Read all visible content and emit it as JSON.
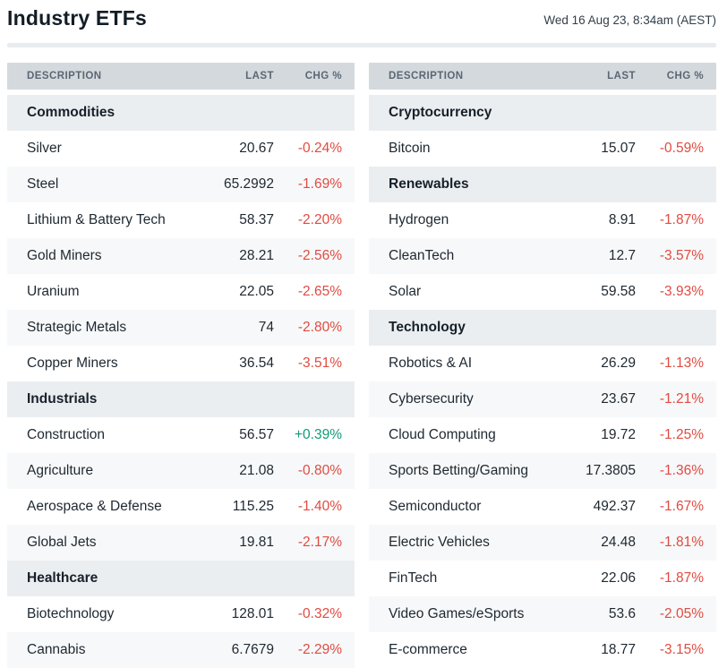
{
  "header": {
    "title": "Industry ETFs",
    "timestamp": "Wed 16 Aug 23, 8:34am (AEST)"
  },
  "columns": {
    "description": "DESCRIPTION",
    "last": "LAST",
    "chg": "CHG %"
  },
  "colors": {
    "negative": "#e04b41",
    "positive": "#0f9c77",
    "table_header_bg": "#d4d9dd",
    "section_bg": "#ebeef0",
    "stripe_bg": "#f7f8f9"
  },
  "tables": [
    {
      "sections": [
        {
          "name": "Commodities",
          "rows": [
            {
              "description": "Silver",
              "last": "20.67",
              "chg": "-0.24%"
            },
            {
              "description": "Steel",
              "last": "65.2992",
              "chg": "-1.69%"
            },
            {
              "description": "Lithium & Battery Tech",
              "last": "58.37",
              "chg": "-2.20%"
            },
            {
              "description": "Gold Miners",
              "last": "28.21",
              "chg": "-2.56%"
            },
            {
              "description": "Uranium",
              "last": "22.05",
              "chg": "-2.65%"
            },
            {
              "description": "Strategic Metals",
              "last": "74",
              "chg": "-2.80%"
            },
            {
              "description": "Copper Miners",
              "last": "36.54",
              "chg": "-3.51%"
            }
          ]
        },
        {
          "name": "Industrials",
          "rows": [
            {
              "description": "Construction",
              "last": "56.57",
              "chg": "+0.39%"
            },
            {
              "description": "Agriculture",
              "last": "21.08",
              "chg": "-0.80%"
            },
            {
              "description": "Aerospace & Defense",
              "last": "115.25",
              "chg": "-1.40%"
            },
            {
              "description": "Global Jets",
              "last": "19.81",
              "chg": "-2.17%"
            }
          ]
        },
        {
          "name": "Healthcare",
          "rows": [
            {
              "description": "Biotechnology",
              "last": "128.01",
              "chg": "-0.32%"
            },
            {
              "description": "Cannabis",
              "last": "6.7679",
              "chg": "-2.29%"
            }
          ]
        }
      ]
    },
    {
      "sections": [
        {
          "name": "Cryptocurrency",
          "rows": [
            {
              "description": "Bitcoin",
              "last": "15.07",
              "chg": "-0.59%"
            }
          ]
        },
        {
          "name": "Renewables",
          "rows": [
            {
              "description": "Hydrogen",
              "last": "8.91",
              "chg": "-1.87%"
            },
            {
              "description": "CleanTech",
              "last": "12.7",
              "chg": "-3.57%"
            },
            {
              "description": "Solar",
              "last": "59.58",
              "chg": "-3.93%"
            }
          ]
        },
        {
          "name": "Technology",
          "rows": [
            {
              "description": "Robotics & AI",
              "last": "26.29",
              "chg": "-1.13%"
            },
            {
              "description": "Cybersecurity",
              "last": "23.67",
              "chg": "-1.21%"
            },
            {
              "description": "Cloud Computing",
              "last": "19.72",
              "chg": "-1.25%"
            },
            {
              "description": "Sports Betting/Gaming",
              "last": "17.3805",
              "chg": "-1.36%"
            },
            {
              "description": "Semiconductor",
              "last": "492.37",
              "chg": "-1.67%"
            },
            {
              "description": "Electric Vehicles",
              "last": "24.48",
              "chg": "-1.81%"
            },
            {
              "description": "FinTech",
              "last": "22.06",
              "chg": "-1.87%"
            },
            {
              "description": "Video Games/eSports",
              "last": "53.6",
              "chg": "-2.05%"
            },
            {
              "description": "E-commerce",
              "last": "18.77",
              "chg": "-3.15%"
            }
          ]
        }
      ]
    }
  ]
}
